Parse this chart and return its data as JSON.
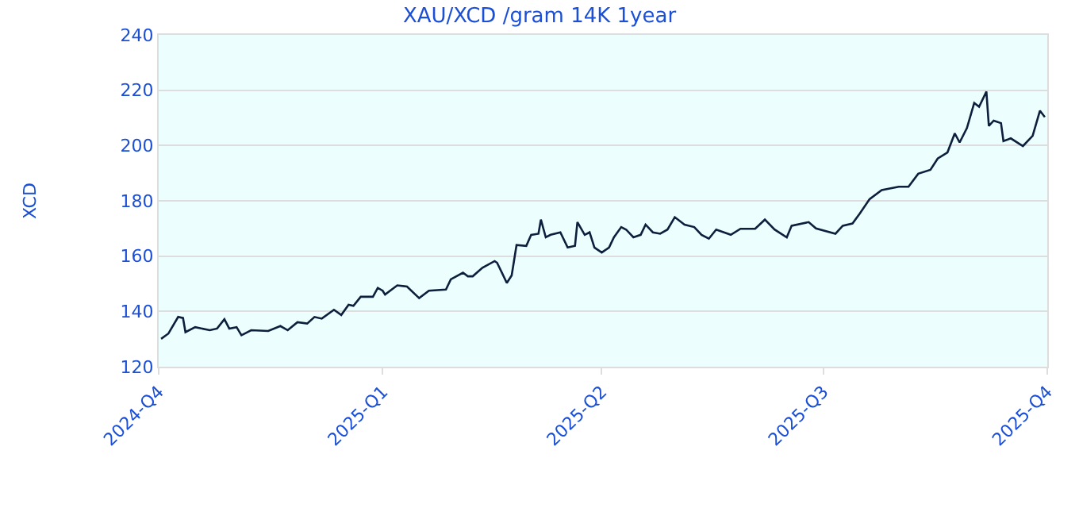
{
  "chart_data": {
    "type": "line",
    "title": "XAU/XCD /gram 14K 1year",
    "ylabel": "XCD",
    "x": [
      "2024-10-02",
      "2024-10-05",
      "2024-10-09",
      "2024-10-11",
      "2024-10-12",
      "2024-10-16",
      "2024-10-22",
      "2024-10-25",
      "2024-10-28",
      "2024-10-30",
      "2024-11-02",
      "2024-11-04",
      "2024-11-08",
      "2024-11-15",
      "2024-11-20",
      "2024-11-23",
      "2024-11-27",
      "2024-12-01",
      "2024-12-04",
      "2024-12-07",
      "2024-12-12",
      "2024-12-15",
      "2024-12-18",
      "2024-12-20",
      "2024-12-23",
      "2024-12-28",
      "2024-12-30",
      "2025-01-01",
      "2025-01-02",
      "2025-01-07",
      "2025-01-11",
      "2025-01-16",
      "2025-01-20",
      "2025-01-27",
      "2025-01-29",
      "2025-02-03",
      "2025-02-05",
      "2025-02-07",
      "2025-02-11",
      "2025-02-16",
      "2025-02-17",
      "2025-02-19",
      "2025-02-21",
      "2025-02-23",
      "2025-02-25",
      "2025-03-01",
      "2025-03-03",
      "2025-03-06",
      "2025-03-07",
      "2025-03-09",
      "2025-03-11",
      "2025-03-15",
      "2025-03-18",
      "2025-03-21",
      "2025-03-22",
      "2025-03-25",
      "2025-03-27",
      "2025-03-29",
      "2025-04-01",
      "2025-04-04",
      "2025-04-06",
      "2025-04-09",
      "2025-04-11",
      "2025-04-14",
      "2025-04-17",
      "2025-04-19",
      "2025-04-22",
      "2025-04-25",
      "2025-04-28",
      "2025-05-01",
      "2025-05-05",
      "2025-05-09",
      "2025-05-12",
      "2025-05-15",
      "2025-05-18",
      "2025-05-24",
      "2025-05-28",
      "2025-06-03",
      "2025-06-07",
      "2025-06-11",
      "2025-06-16",
      "2025-06-18",
      "2025-06-25",
      "2025-06-28",
      "2025-07-06",
      "2025-07-09",
      "2025-07-13",
      "2025-07-16",
      "2025-07-20",
      "2025-07-25",
      "2025-08-01",
      "2025-08-05",
      "2025-08-09",
      "2025-08-14",
      "2025-08-17",
      "2025-08-21",
      "2025-08-24",
      "2025-08-26",
      "2025-08-29",
      "2025-09-01",
      "2025-09-03",
      "2025-09-06",
      "2025-09-07",
      "2025-09-09",
      "2025-09-12",
      "2025-09-13",
      "2025-09-16",
      "2025-09-21",
      "2025-09-25",
      "2025-09-28",
      "2025-09-30"
    ],
    "series": [
      {
        "color": "#0c1f3c",
        "values": [
          130.1,
          132,
          138,
          137.6,
          132.5,
          134.3,
          133.2,
          133.8,
          137.2,
          133.8,
          134.3,
          131.4,
          133.2,
          132.9,
          134.7,
          133.2,
          136.1,
          135.6,
          138,
          137.4,
          140.6,
          138.7,
          142.4,
          142,
          145.3,
          145.3,
          148.5,
          147.5,
          146.1,
          149.4,
          149,
          144.8,
          147.5,
          147.9,
          151.6,
          154,
          152.7,
          152.7,
          155.8,
          158.2,
          157.6,
          154,
          150.3,
          153,
          164,
          163.7,
          167.7,
          168.1,
          173.2,
          166.8,
          167.7,
          168.6,
          163.1,
          163.7,
          172.3,
          167.7,
          168.6,
          163.1,
          161.3,
          163.1,
          166.8,
          170.5,
          169.6,
          166.8,
          167.7,
          171.4,
          168.6,
          168.1,
          169.6,
          174.1,
          171.4,
          170.5,
          167.7,
          166.3,
          169.6,
          167.7,
          169.9,
          169.9,
          173.2,
          169.6,
          166.8,
          171,
          172.3,
          170,
          168.1,
          171,
          171.8,
          175.4,
          180.6,
          183.9,
          185.1,
          185.1,
          189.8,
          191.2,
          195.3,
          197.5,
          204.4,
          201.1,
          206.3,
          215.4,
          214,
          219.5,
          207.1,
          209,
          208.1,
          201.6,
          202.6,
          199.8,
          203.5,
          212.6,
          210.3
        ]
      }
    ],
    "xlim": [
      "2024-10-01",
      "2025-10-01"
    ],
    "xticks": [
      {
        "value": "2024-10-01",
        "label": "2024-Q4"
      },
      {
        "value": "2025-01-01",
        "label": "2025-Q1"
      },
      {
        "value": "2025-04-01",
        "label": "2025-Q2"
      },
      {
        "value": "2025-07-01",
        "label": "2025-Q3"
      },
      {
        "value": "2025-10-01",
        "label": "2025-Q4"
      }
    ],
    "ylim": [
      120,
      240
    ],
    "yticks": [
      120,
      140,
      160,
      180,
      200,
      220,
      240
    ],
    "grid": "y",
    "marker": "none",
    "line_style": "solid"
  }
}
